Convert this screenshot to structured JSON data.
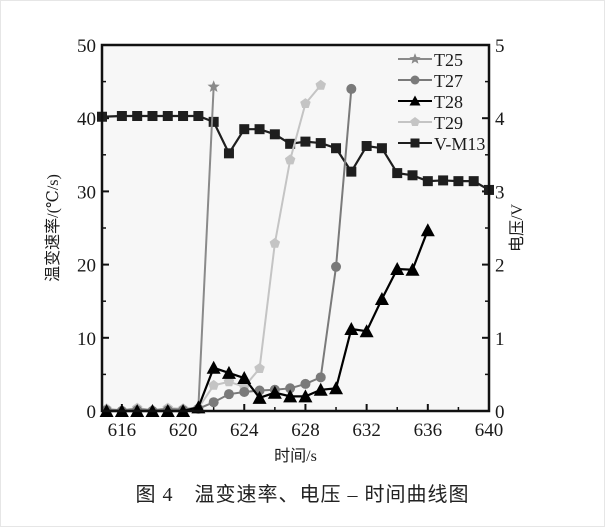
{
  "figure": {
    "caption": "图 4　温变速率、电压 – 时间曲线图"
  },
  "chart_data": {
    "type": "line",
    "title": "",
    "xlabel": "时间/s",
    "ylabel": "温变速率/(℃/s)",
    "y2label": "电压/V",
    "xlim": [
      614.7,
      640
    ],
    "ylim": [
      0,
      50
    ],
    "y2lim": [
      0,
      5
    ],
    "x_ticks": [
      616,
      620,
      624,
      628,
      632,
      636,
      640
    ],
    "y_ticks": [
      0,
      10,
      20,
      30,
      40,
      50
    ],
    "y2_ticks": [
      0,
      1,
      2,
      3,
      4,
      5
    ],
    "grid": false,
    "legend_position": "upper right",
    "series": [
      {
        "name": "T25",
        "axis": "left",
        "marker": "star",
        "color": "#8a8a8a",
        "x": [
          615,
          616,
          617,
          618,
          619,
          620,
          621,
          622
        ],
        "values": [
          0.2,
          0.1,
          0.3,
          0.1,
          0.3,
          0.2,
          0.5,
          44.3
        ]
      },
      {
        "name": "T27",
        "axis": "left",
        "marker": "circle",
        "color": "#7a7a7a",
        "x": [
          615,
          616,
          617,
          618,
          619,
          620,
          621,
          622,
          623,
          624,
          625,
          626,
          627,
          628,
          629,
          630,
          631
        ],
        "values": [
          0.1,
          0.0,
          0.1,
          0.0,
          0.1,
          0.1,
          0.3,
          1.2,
          2.3,
          2.6,
          2.8,
          2.9,
          3.1,
          3.7,
          4.6,
          19.7,
          44.0
        ]
      },
      {
        "name": "T28",
        "axis": "left",
        "marker": "triangle",
        "color": "#000000",
        "x": [
          615,
          616,
          617,
          618,
          619,
          620,
          621,
          622,
          623,
          624,
          625,
          626,
          627,
          628,
          629,
          630,
          631,
          632,
          633,
          634,
          635,
          636
        ],
        "values": [
          0.0,
          0.0,
          0.0,
          0.0,
          0.0,
          0.0,
          0.5,
          5.9,
          5.2,
          4.5,
          1.8,
          2.5,
          2.0,
          2.0,
          2.9,
          3.1,
          11.2,
          10.9,
          15.3,
          19.4,
          19.3,
          24.7
        ]
      },
      {
        "name": "T29",
        "axis": "left",
        "marker": "pentagon",
        "color": "#c4c4c4",
        "x": [
          615,
          616,
          617,
          618,
          619,
          620,
          621,
          622,
          623,
          624,
          625,
          626,
          627,
          628,
          629
        ],
        "values": [
          0.3,
          0.1,
          0.4,
          0.1,
          0.4,
          0.3,
          0.4,
          3.5,
          4.0,
          3.3,
          5.8,
          22.9,
          34.3,
          42.0,
          44.5
        ]
      },
      {
        "name": "V-M13",
        "axis": "right",
        "marker": "square",
        "color": "#1e1e1e",
        "x": [
          614.7,
          616,
          617,
          618,
          619,
          620,
          621,
          622,
          623,
          624,
          625,
          626,
          627,
          628,
          629,
          630,
          631,
          632,
          633,
          634,
          635,
          636,
          637,
          638,
          639,
          640
        ],
        "values": [
          4.02,
          4.03,
          4.03,
          4.03,
          4.03,
          4.03,
          4.03,
          3.95,
          3.52,
          3.85,
          3.85,
          3.78,
          3.65,
          3.68,
          3.66,
          3.59,
          3.27,
          3.62,
          3.59,
          3.25,
          3.22,
          3.14,
          3.15,
          3.14,
          3.14,
          3.02
        ]
      }
    ]
  }
}
